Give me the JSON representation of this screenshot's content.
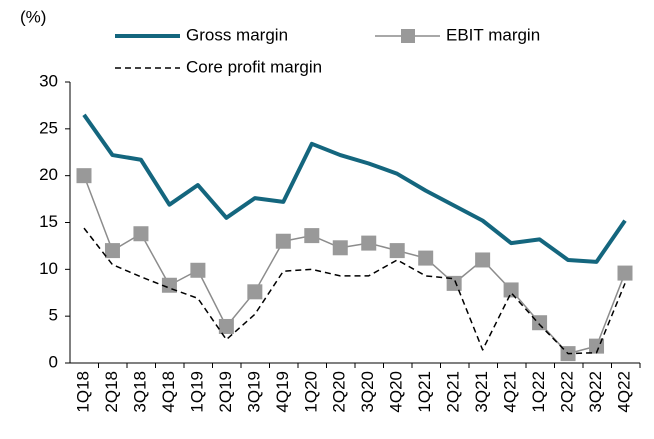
{
  "chart_data": {
    "type": "line",
    "y_unit_label": "(%)",
    "categories": [
      "1Q18",
      "2Q18",
      "3Q18",
      "4Q18",
      "1Q19",
      "2Q19",
      "3Q19",
      "4Q19",
      "1Q20",
      "2Q20",
      "3Q20",
      "4Q20",
      "1Q21",
      "2Q21",
      "3Q21",
      "4Q21",
      "1Q22",
      "2Q22",
      "3Q22",
      "4Q22"
    ],
    "series": [
      {
        "name": "Gross margin",
        "color": "#14667e",
        "width": 4,
        "dash": false,
        "marker": "none",
        "values": [
          26.5,
          22.2,
          21.7,
          16.9,
          19.0,
          15.5,
          17.6,
          17.2,
          23.4,
          22.2,
          21.3,
          20.2,
          18.4,
          16.8,
          15.2,
          12.8,
          13.2,
          11.0,
          10.8,
          15.2
        ]
      },
      {
        "name": "EBIT margin",
        "color": "#8c8c8c",
        "marker_color": "#999999",
        "width": 1.5,
        "dash": false,
        "marker": "square",
        "values": [
          20.0,
          12.0,
          13.8,
          8.3,
          9.9,
          3.9,
          7.6,
          13.0,
          13.6,
          12.3,
          12.8,
          12.0,
          11.2,
          8.5,
          11.0,
          7.8,
          4.3,
          1.0,
          1.8,
          9.6
        ]
      },
      {
        "name": "Core profit margin",
        "color": "#000000",
        "width": 1.5,
        "dash": true,
        "marker": "none",
        "values": [
          14.4,
          10.5,
          9.2,
          8.0,
          6.9,
          2.5,
          5.2,
          9.8,
          10.0,
          9.3,
          9.3,
          11.0,
          9.3,
          9.0,
          1.4,
          7.5,
          4.1,
          1.0,
          1.1,
          8.5
        ]
      }
    ],
    "ylim": [
      0,
      30
    ],
    "yticks": [
      0,
      5,
      10,
      15,
      20,
      25,
      30
    ],
    "grid": false
  }
}
